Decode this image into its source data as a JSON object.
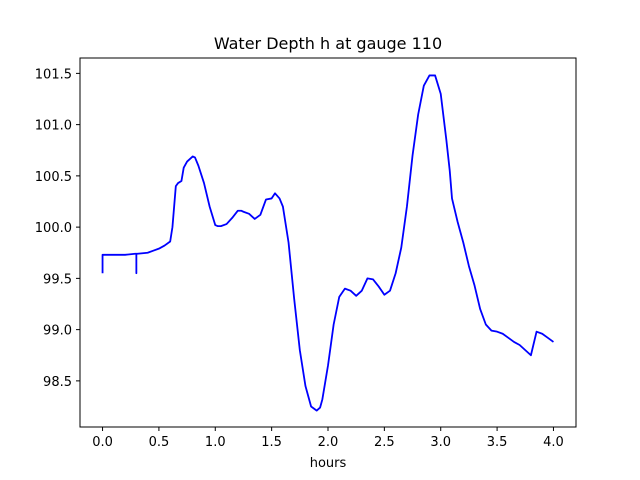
{
  "chart_data": {
    "type": "line",
    "title": "Water Depth h at gauge 110",
    "xlabel": "hours",
    "ylabel": "",
    "xlim": [
      -0.2,
      4.2
    ],
    "ylim": [
      98.05,
      101.65
    ],
    "xticks": [
      0.0,
      0.5,
      1.0,
      1.5,
      2.0,
      2.5,
      3.0,
      3.5,
      4.0
    ],
    "xtick_labels": [
      "0.0",
      "0.5",
      "1.0",
      "1.5",
      "2.0",
      "2.5",
      "3.0",
      "3.5",
      "4.0"
    ],
    "yticks": [
      98.5,
      99.0,
      99.5,
      100.0,
      100.5,
      101.0,
      101.5
    ],
    "ytick_labels": [
      "98.5",
      "99.0",
      "99.5",
      "100.0",
      "100.5",
      "101.0",
      "101.5"
    ],
    "grid": false,
    "series": [
      {
        "color": "#0000ff",
        "x": [
          0.0,
          0.0,
          0.05,
          0.1,
          0.2,
          0.29,
          0.3,
          0.3,
          0.3,
          0.31,
          0.4,
          0.45,
          0.5,
          0.55,
          0.6,
          0.62,
          0.65,
          0.67,
          0.7,
          0.72,
          0.75,
          0.8,
          0.82,
          0.85,
          0.9,
          0.95,
          1.0,
          1.02,
          1.05,
          1.1,
          1.15,
          1.2,
          1.23,
          1.25,
          1.3,
          1.35,
          1.4,
          1.45,
          1.5,
          1.53,
          1.57,
          1.6,
          1.65,
          1.7,
          1.75,
          1.8,
          1.85,
          1.9,
          1.93,
          1.95,
          2.0,
          2.05,
          2.1,
          2.15,
          2.2,
          2.25,
          2.3,
          2.35,
          2.4,
          2.45,
          2.5,
          2.55,
          2.6,
          2.65,
          2.7,
          2.75,
          2.8,
          2.85,
          2.9,
          2.95,
          3.0,
          3.05,
          3.08,
          3.1,
          3.15,
          3.2,
          3.25,
          3.3,
          3.35,
          3.4,
          3.45,
          3.5,
          3.55,
          3.6,
          3.65,
          3.7,
          3.75,
          3.8,
          3.85,
          3.9,
          3.95,
          4.0
        ],
        "values": [
          99.55,
          99.73,
          99.73,
          99.73,
          99.73,
          99.74,
          99.74,
          99.55,
          99.74,
          99.74,
          99.75,
          99.77,
          99.79,
          99.82,
          99.86,
          100.0,
          100.4,
          100.43,
          100.45,
          100.58,
          100.64,
          100.69,
          100.68,
          100.6,
          100.43,
          100.2,
          100.02,
          100.01,
          100.01,
          100.03,
          100.09,
          100.16,
          100.16,
          100.15,
          100.13,
          100.08,
          100.12,
          100.27,
          100.28,
          100.33,
          100.28,
          100.2,
          99.85,
          99.3,
          98.8,
          98.45,
          98.25,
          98.21,
          98.24,
          98.32,
          98.65,
          99.05,
          99.32,
          99.4,
          99.38,
          99.33,
          99.38,
          99.5,
          99.49,
          99.42,
          99.34,
          99.38,
          99.55,
          99.8,
          100.2,
          100.7,
          101.1,
          101.38,
          101.48,
          101.48,
          101.3,
          100.85,
          100.55,
          100.28,
          100.05,
          99.85,
          99.62,
          99.43,
          99.2,
          99.05,
          98.99,
          98.98,
          98.96,
          98.92,
          98.88,
          98.85,
          98.8,
          98.75,
          98.98,
          98.96,
          98.92,
          98.88
        ]
      }
    ]
  }
}
